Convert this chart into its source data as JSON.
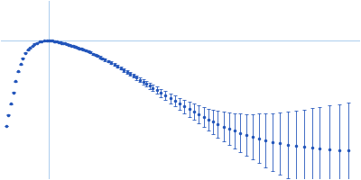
{
  "title": "",
  "background_color": "#ffffff",
  "dot_color": "#2255bb",
  "line_color": "#aaccee",
  "figsize": [
    4.0,
    2.0
  ],
  "dpi": 100,
  "x_data": [
    0.012,
    0.018,
    0.024,
    0.03,
    0.036,
    0.042,
    0.048,
    0.054,
    0.06,
    0.066,
    0.072,
    0.078,
    0.084,
    0.09,
    0.096,
    0.102,
    0.108,
    0.114,
    0.12,
    0.124,
    0.128,
    0.132,
    0.136,
    0.14,
    0.144,
    0.148,
    0.152,
    0.156,
    0.16,
    0.164,
    0.168,
    0.172,
    0.176,
    0.18,
    0.184,
    0.188,
    0.192,
    0.196,
    0.2,
    0.206,
    0.212,
    0.218,
    0.224,
    0.23,
    0.236,
    0.242,
    0.248,
    0.254,
    0.26,
    0.268,
    0.276,
    0.284,
    0.292,
    0.3,
    0.308,
    0.316,
    0.324,
    0.332,
    0.34,
    0.348,
    0.356,
    0.364,
    0.372,
    0.38,
    0.39,
    0.4,
    0.412,
    0.424,
    0.436,
    0.448,
    0.46,
    0.472,
    0.484,
    0.496,
    0.508,
    0.52,
    0.532,
    0.544,
    0.558,
    0.572,
    0.586,
    0.6,
    0.616,
    0.632,
    0.648,
    0.664,
    0.682,
    0.7,
    0.72,
    0.74,
    0.76,
    0.78,
    0.8,
    0.824,
    0.848,
    0.872
  ],
  "y_data": [
    0.22,
    0.33,
    0.44,
    0.55,
    0.66,
    0.76,
    0.83,
    0.89,
    0.94,
    0.97,
    0.99,
    1.01,
    1.03,
    1.04,
    1.05,
    1.055,
    1.06,
    1.062,
    1.063,
    1.062,
    1.06,
    1.058,
    1.055,
    1.052,
    1.048,
    1.044,
    1.04,
    1.036,
    1.032,
    1.028,
    1.023,
    1.018,
    1.013,
    1.008,
    1.003,
    0.998,
    0.992,
    0.986,
    0.98,
    0.972,
    0.963,
    0.954,
    0.944,
    0.933,
    0.922,
    0.91,
    0.898,
    0.886,
    0.873,
    0.858,
    0.842,
    0.826,
    0.809,
    0.791,
    0.773,
    0.754,
    0.735,
    0.716,
    0.697,
    0.677,
    0.657,
    0.637,
    0.617,
    0.597,
    0.572,
    0.548,
    0.52,
    0.493,
    0.466,
    0.439,
    0.412,
    0.385,
    0.359,
    0.333,
    0.308,
    0.284,
    0.261,
    0.239,
    0.215,
    0.193,
    0.172,
    0.153,
    0.132,
    0.113,
    0.096,
    0.08,
    0.063,
    0.049,
    0.034,
    0.022,
    0.012,
    0.004,
    -0.003,
    -0.01,
    -0.016,
    -0.02
  ],
  "y_err": [
    0.003,
    0.003,
    0.003,
    0.004,
    0.004,
    0.004,
    0.004,
    0.004,
    0.004,
    0.004,
    0.004,
    0.004,
    0.004,
    0.005,
    0.005,
    0.005,
    0.005,
    0.005,
    0.005,
    0.005,
    0.005,
    0.005,
    0.005,
    0.006,
    0.006,
    0.006,
    0.006,
    0.006,
    0.006,
    0.006,
    0.007,
    0.007,
    0.007,
    0.007,
    0.007,
    0.007,
    0.008,
    0.008,
    0.008,
    0.008,
    0.009,
    0.009,
    0.009,
    0.01,
    0.01,
    0.01,
    0.011,
    0.011,
    0.012,
    0.012,
    0.013,
    0.014,
    0.015,
    0.016,
    0.017,
    0.018,
    0.019,
    0.021,
    0.022,
    0.024,
    0.026,
    0.028,
    0.03,
    0.033,
    0.036,
    0.04,
    0.044,
    0.049,
    0.054,
    0.06,
    0.066,
    0.073,
    0.081,
    0.09,
    0.099,
    0.109,
    0.12,
    0.132,
    0.145,
    0.159,
    0.174,
    0.19,
    0.207,
    0.225,
    0.244,
    0.264,
    0.284,
    0.305,
    0.326,
    0.348,
    0.369,
    0.39,
    0.411,
    0.432,
    0.453,
    0.474
  ],
  "vline_x": 0.12,
  "hline_y": 1.063,
  "xlim": [
    0.0,
    0.9
  ],
  "ylim": [
    -0.3,
    1.45
  ]
}
